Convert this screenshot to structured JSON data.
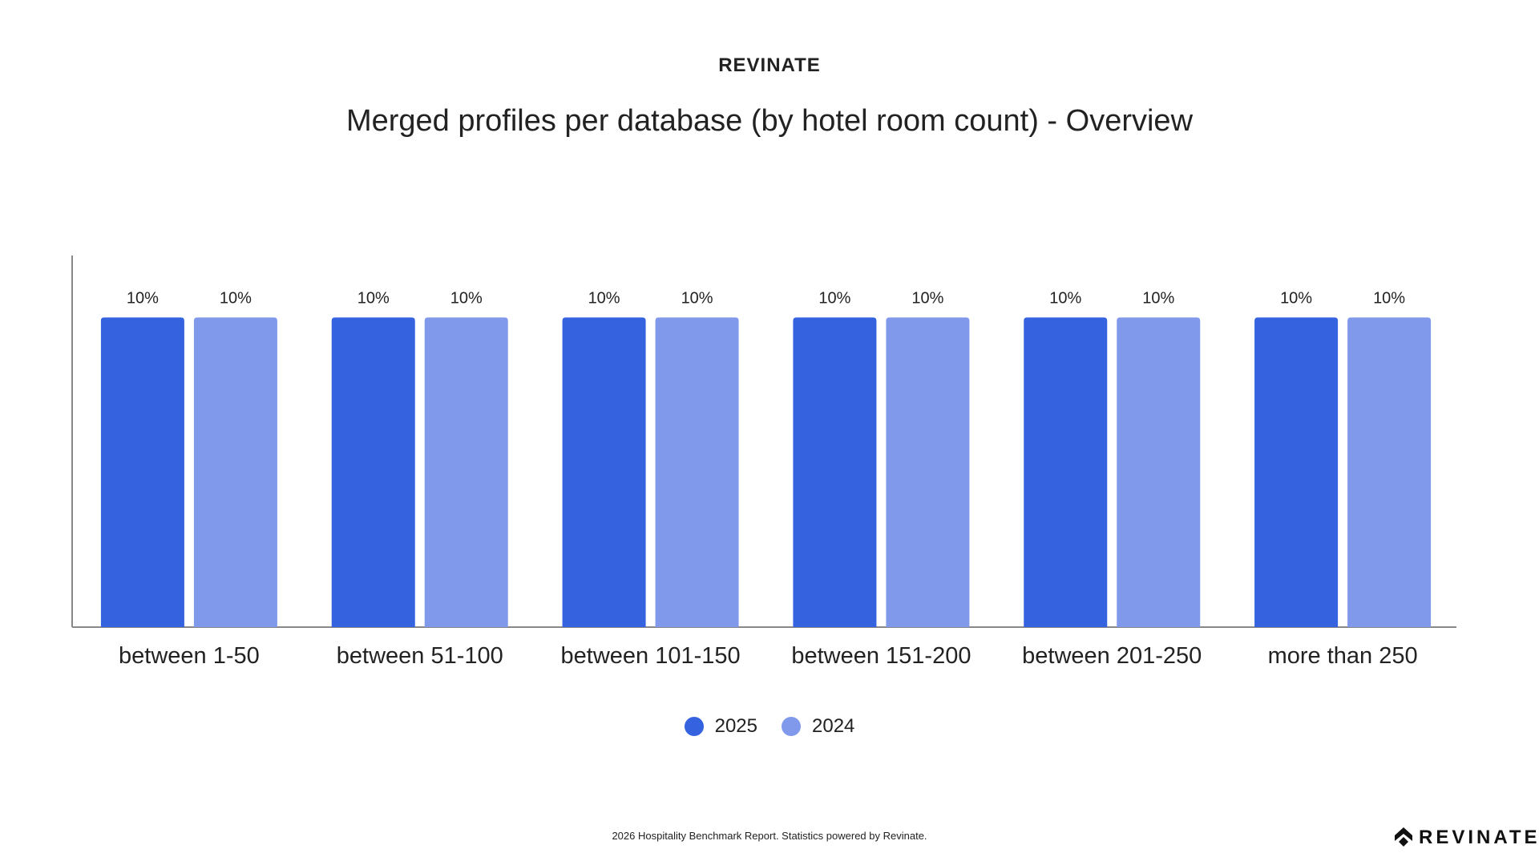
{
  "brand": "REVINATE",
  "footer": "2026 Hospitality Benchmark Report. Statistics powered by Revinate.",
  "logo_text": "REVINATE",
  "chart_data": {
    "type": "bar",
    "title": "Merged profiles per database (by hotel room count) - Overview",
    "categories": [
      "between 1-50",
      "between 51-100",
      "between 101-150",
      "between 151-200",
      "between 201-250",
      "more than 250"
    ],
    "series": [
      {
        "name": "2025",
        "color": "#3563E0",
        "values": [
          10,
          10,
          10,
          10,
          10,
          10
        ]
      },
      {
        "name": "2024",
        "color": "#8199EB",
        "values": [
          10,
          10,
          10,
          10,
          10,
          10
        ]
      }
    ],
    "value_suffix": "%",
    "ylim": [
      0,
      12
    ],
    "grid": false,
    "legend": "bottom-center",
    "xlabel": "",
    "ylabel": ""
  }
}
